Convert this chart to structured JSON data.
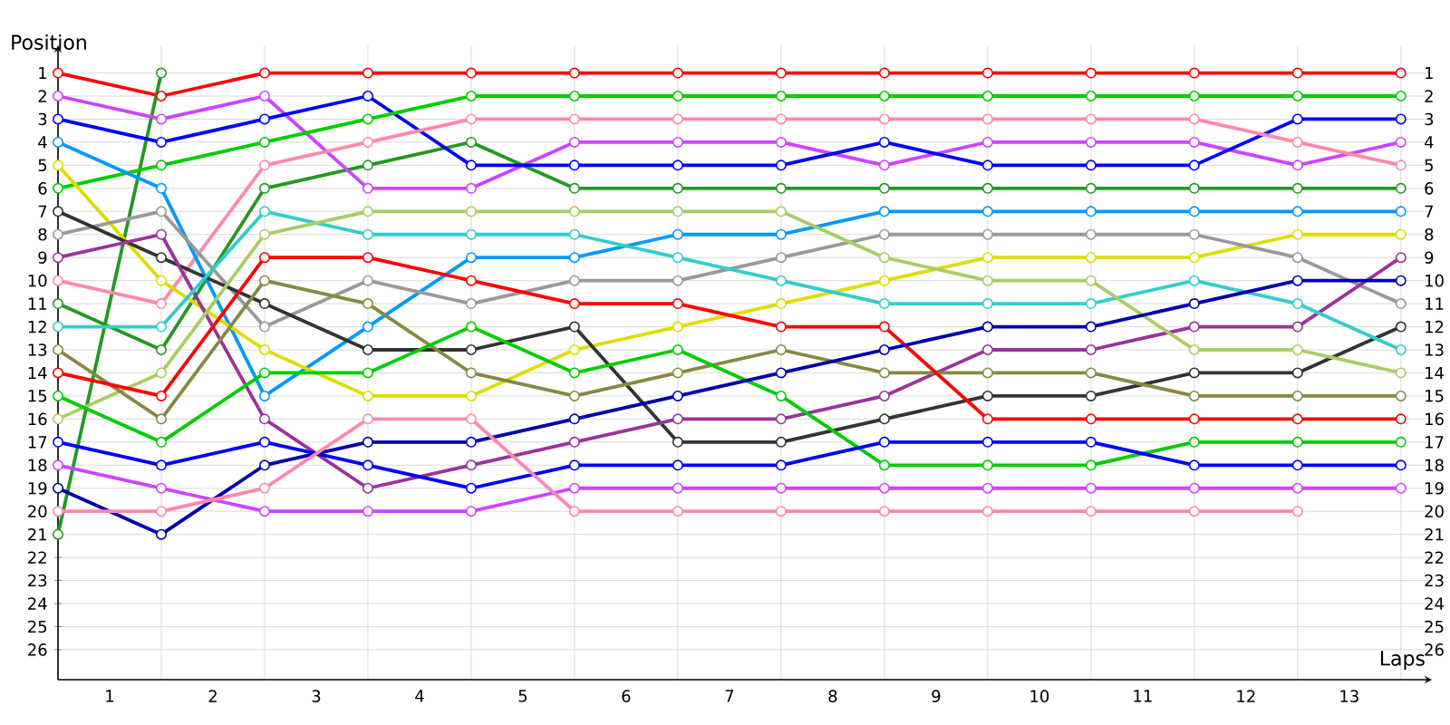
{
  "chart_data": {
    "type": "line",
    "xlabel": "Laps",
    "ylabel": "Position",
    "x": [
      0,
      1,
      2,
      3,
      4,
      5,
      6,
      7,
      8,
      9,
      10,
      11,
      12,
      13
    ],
    "xlim": [
      0,
      13.3
    ],
    "xticks": [
      {
        "value": 0.5,
        "label": "1"
      },
      {
        "value": 1.5,
        "label": "2"
      },
      {
        "value": 2.5,
        "label": "3"
      },
      {
        "value": 3.5,
        "label": "4"
      },
      {
        "value": 4.5,
        "label": "5"
      },
      {
        "value": 5.5,
        "label": "6"
      },
      {
        "value": 6.5,
        "label": "7"
      },
      {
        "value": 7.5,
        "label": "8"
      },
      {
        "value": 8.5,
        "label": "9"
      },
      {
        "value": 9.5,
        "label": "10"
      },
      {
        "value": 10.5,
        "label": "11"
      },
      {
        "value": 11.5,
        "label": "12"
      },
      {
        "value": 12.5,
        "label": "13"
      }
    ],
    "ylim": [
      27.3,
      -0.2
    ],
    "yticks": [
      1,
      2,
      3,
      4,
      5,
      6,
      7,
      8,
      9,
      10,
      11,
      12,
      13,
      14,
      15,
      16,
      17,
      18,
      19,
      20,
      21,
      22,
      23,
      24,
      25,
      26
    ],
    "y2lim": [
      27.3,
      -0.2
    ],
    "y2ticks": [
      1,
      2,
      3,
      4,
      5,
      6,
      7,
      8,
      9,
      10,
      11,
      12,
      13,
      14,
      15,
      16,
      17,
      18,
      19,
      20,
      21,
      22,
      23,
      24,
      25,
      26
    ],
    "grid": true,
    "marker": "circle",
    "line_style": "solid",
    "series": [
      {
        "color": "#ff0000",
        "values": [
          1,
          2,
          1,
          1,
          1,
          1,
          1,
          1,
          1,
          1,
          1,
          1,
          1,
          1
        ]
      },
      {
        "color": "#229922",
        "values": [
          21,
          1,
          null,
          null,
          null,
          null,
          null,
          null,
          null,
          null,
          null,
          null,
          null,
          null
        ]
      },
      {
        "color": "#229922",
        "values": [
          11,
          13,
          6,
          5,
          4,
          6,
          6,
          6,
          6,
          6,
          6,
          6,
          6,
          6
        ]
      },
      {
        "color": "#cc44ff",
        "values": [
          2,
          3,
          2,
          6,
          6,
          4,
          4,
          4,
          5,
          4,
          4,
          4,
          5,
          4
        ]
      },
      {
        "color": "#0000ff",
        "values": [
          3,
          4,
          3,
          2,
          5,
          5,
          5,
          5,
          4,
          5,
          5,
          5,
          3,
          3
        ]
      },
      {
        "color": "#00cc00",
        "values": [
          6,
          5,
          4,
          3,
          2,
          2,
          2,
          2,
          2,
          2,
          2,
          2,
          2,
          2
        ]
      },
      {
        "color": "#ff88aa",
        "values": [
          10,
          11,
          5,
          4,
          3,
          3,
          3,
          3,
          3,
          3,
          3,
          3,
          4,
          5
        ]
      },
      {
        "color": "#0099ff",
        "values": [
          4,
          6,
          15,
          12,
          9,
          9,
          8,
          8,
          7,
          7,
          7,
          7,
          7,
          7
        ]
      },
      {
        "color": "#dddd00",
        "values": [
          5,
          10,
          13,
          15,
          15,
          13,
          12,
          11,
          10,
          9,
          9,
          9,
          8,
          8
        ]
      },
      {
        "color": "#999999",
        "values": [
          8,
          7,
          12,
          10,
          11,
          10,
          10,
          9,
          8,
          8,
          8,
          8,
          9,
          11
        ]
      },
      {
        "color": "#333333",
        "values": [
          7,
          9,
          11,
          13,
          13,
          12,
          17,
          17,
          16,
          15,
          15,
          14,
          14,
          12
        ]
      },
      {
        "color": "#993399",
        "values": [
          9,
          8,
          16,
          19,
          18,
          17,
          16,
          16,
          15,
          13,
          13,
          12,
          12,
          9
        ]
      },
      {
        "color": "#33cccc",
        "values": [
          12,
          12,
          7,
          8,
          8,
          8,
          9,
          10,
          11,
          11,
          11,
          10,
          11,
          13
        ]
      },
      {
        "color": "#aacc66",
        "values": [
          16,
          14,
          8,
          7,
          7,
          7,
          7,
          7,
          9,
          10,
          10,
          13,
          13,
          14
        ]
      },
      {
        "color": "#888844",
        "values": [
          13,
          16,
          10,
          11,
          14,
          15,
          14,
          13,
          14,
          14,
          14,
          15,
          15,
          15
        ]
      },
      {
        "color": "#ff0000",
        "values": [
          14,
          15,
          9,
          9,
          10,
          11,
          11,
          12,
          12,
          16,
          16,
          16,
          16,
          16
        ]
      },
      {
        "color": "#00cc00",
        "values": [
          15,
          17,
          14,
          14,
          12,
          14,
          13,
          15,
          18,
          18,
          18,
          17,
          17,
          17
        ]
      },
      {
        "color": "#0000ff",
        "values": [
          17,
          18,
          17,
          18,
          19,
          18,
          18,
          18,
          17,
          17,
          17,
          18,
          18,
          18
        ]
      },
      {
        "color": "#0000aa",
        "values": [
          19,
          21,
          18,
          17,
          17,
          16,
          15,
          14,
          13,
          12,
          12,
          11,
          10,
          10
        ]
      },
      {
        "color": "#cc44ff",
        "values": [
          18,
          19,
          20,
          20,
          20,
          19,
          19,
          19,
          19,
          19,
          19,
          19,
          19,
          19
        ]
      },
      {
        "color": "#ff88aa",
        "values": [
          20,
          20,
          19,
          16,
          16,
          20,
          20,
          20,
          20,
          20,
          20,
          20,
          20,
          null
        ]
      }
    ]
  }
}
